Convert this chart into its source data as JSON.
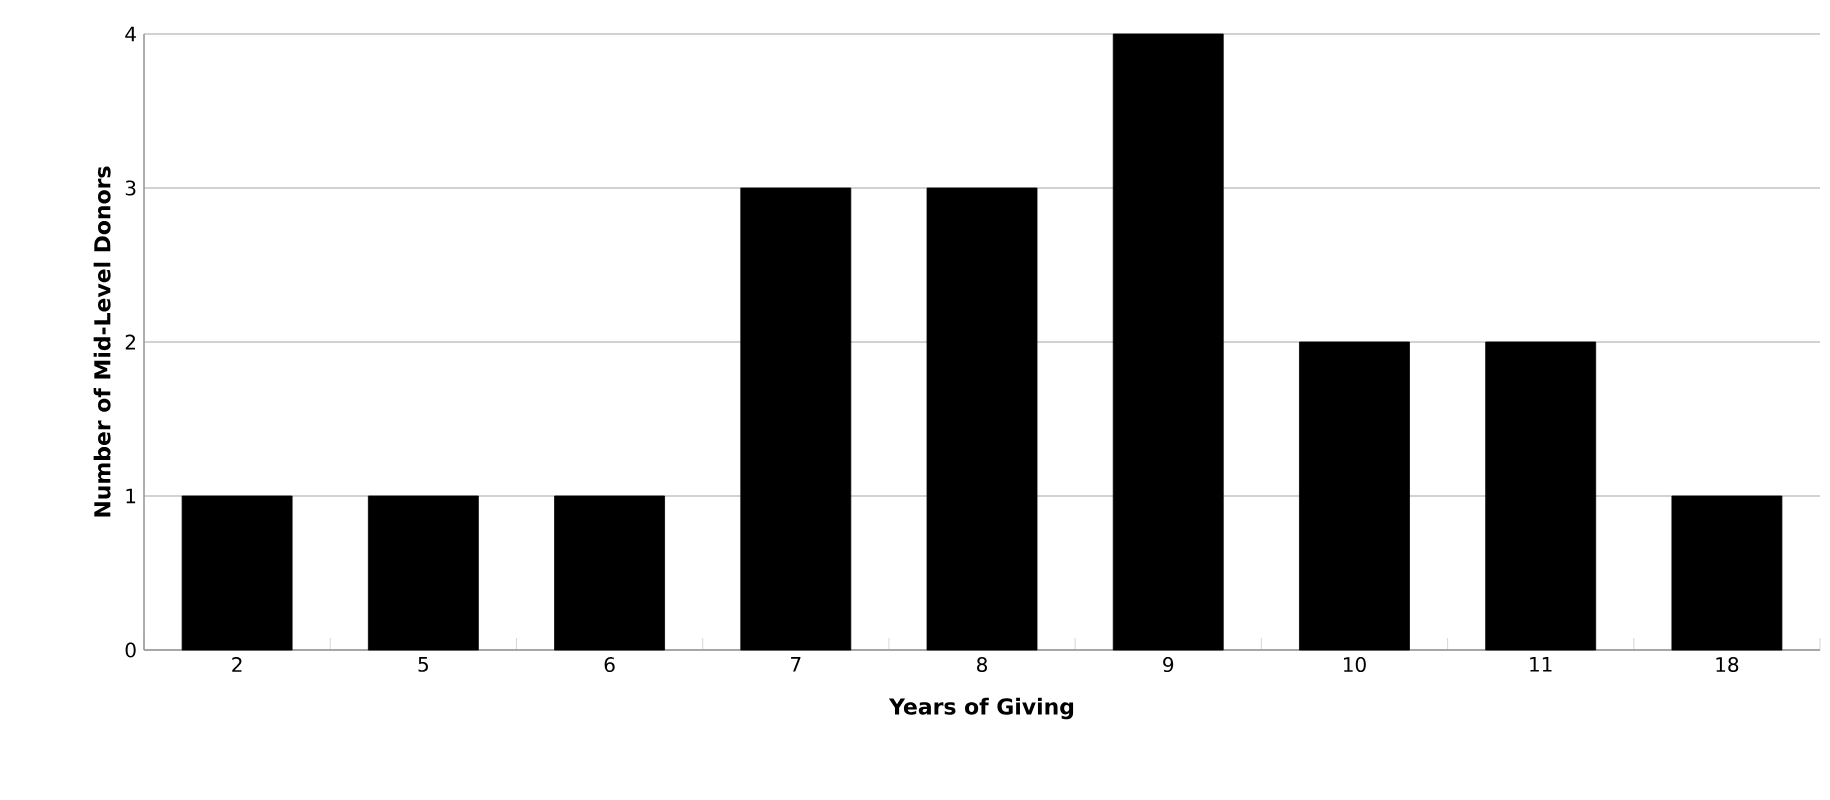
{
  "chart_data": {
    "type": "bar",
    "xlabel": "Years of Giving",
    "ylabel": "Number of Mid-Level Donors",
    "categories": [
      "2",
      "5",
      "6",
      "7",
      "8",
      "9",
      "10",
      "11",
      "18"
    ],
    "values": [
      1,
      1,
      1,
      3,
      3,
      4,
      2,
      2,
      1
    ],
    "color": "#000000",
    "ylim": [
      0,
      4
    ],
    "yticks": [
      0,
      1,
      2,
      3,
      4
    ],
    "grid": "y"
  }
}
